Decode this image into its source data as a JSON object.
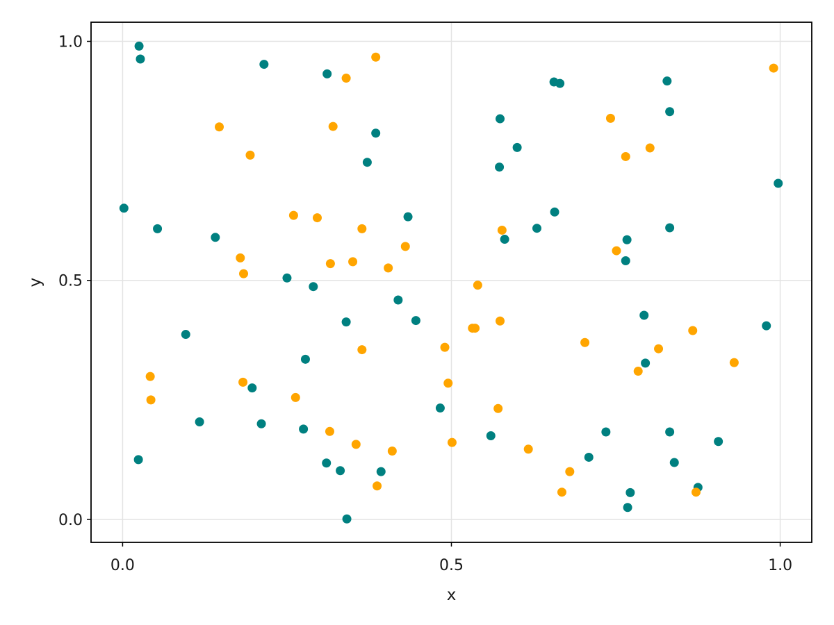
{
  "chart_data": {
    "type": "scatter",
    "title": "",
    "xlabel": "x",
    "ylabel": "y",
    "xlim": [
      -0.048,
      1.048
    ],
    "ylim": [
      -0.048,
      1.04
    ],
    "xticks": [
      0.0,
      0.5,
      1.0
    ],
    "xtick_labels": [
      "0.0",
      "0.5",
      "1.0"
    ],
    "yticks": [
      0.0,
      0.5,
      1.0
    ],
    "ytick_labels": [
      "0.0",
      "0.5",
      "1.0"
    ],
    "grid": true,
    "legend": "none",
    "series": [
      {
        "color": "#008080",
        "x": [
          0.025,
          0.027,
          0.215,
          0.311,
          0.002,
          0.053,
          0.141,
          0.25,
          0.29,
          0.278,
          0.385,
          0.372,
          0.434,
          0.419,
          0.446,
          0.34,
          0.096,
          0.197,
          0.117,
          0.211,
          0.275,
          0.024,
          0.31,
          0.331,
          0.341,
          0.393,
          0.483,
          0.574,
          0.6,
          0.573,
          0.581,
          0.665,
          0.656,
          0.657,
          0.63,
          0.828,
          0.832,
          0.767,
          0.765,
          0.997,
          0.832,
          0.793,
          0.795,
          0.979,
          0.56,
          0.709,
          0.735,
          0.832,
          0.839,
          0.906,
          0.875,
          0.772,
          0.768
        ],
        "y": [
          0.99,
          0.963,
          0.952,
          0.932,
          0.651,
          0.608,
          0.59,
          0.505,
          0.487,
          0.335,
          0.808,
          0.747,
          0.633,
          0.459,
          0.416,
          0.413,
          0.387,
          0.275,
          0.204,
          0.2,
          0.189,
          0.125,
          0.118,
          0.102,
          0.001,
          0.1,
          0.233,
          0.838,
          0.778,
          0.737,
          0.586,
          0.912,
          0.915,
          0.643,
          0.609,
          0.917,
          0.853,
          0.585,
          0.541,
          0.703,
          0.61,
          0.427,
          0.327,
          0.405,
          0.175,
          0.13,
          0.183,
          0.183,
          0.119,
          0.163,
          0.067,
          0.056,
          0.025
        ]
      },
      {
        "color": "#ffa500",
        "x": [
          0.385,
          0.34,
          0.147,
          0.32,
          0.194,
          0.26,
          0.296,
          0.364,
          0.179,
          0.316,
          0.35,
          0.43,
          0.404,
          0.54,
          0.532,
          0.574,
          0.577,
          0.742,
          0.765,
          0.802,
          0.751,
          0.99,
          0.184,
          0.183,
          0.042,
          0.043,
          0.263,
          0.315,
          0.355,
          0.364,
          0.41,
          0.387,
          0.49,
          0.495,
          0.501,
          0.536,
          0.571,
          0.617,
          0.703,
          0.68,
          0.668,
          0.784,
          0.815,
          0.867,
          0.872,
          0.93
        ],
        "y": [
          0.967,
          0.923,
          0.821,
          0.822,
          0.762,
          0.636,
          0.631,
          0.608,
          0.547,
          0.535,
          0.539,
          0.571,
          0.526,
          0.49,
          0.4,
          0.415,
          0.605,
          0.839,
          0.759,
          0.777,
          0.562,
          0.944,
          0.514,
          0.287,
          0.299,
          0.25,
          0.255,
          0.184,
          0.157,
          0.355,
          0.143,
          0.07,
          0.36,
          0.285,
          0.161,
          0.4,
          0.232,
          0.147,
          0.37,
          0.1,
          0.057,
          0.31,
          0.357,
          0.395,
          0.057,
          0.328
        ]
      }
    ]
  }
}
